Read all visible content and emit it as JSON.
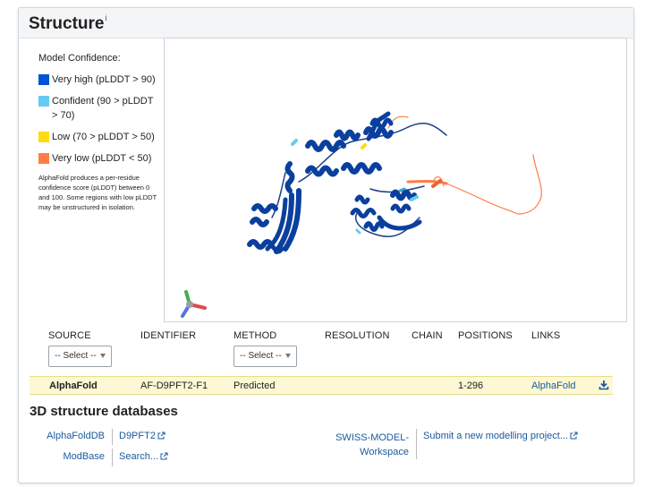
{
  "header": {
    "title": "Structure",
    "info_marker": "i"
  },
  "legend": {
    "title": "Model Confidence:",
    "items": [
      {
        "label": "Very high (pLDDT > 90)",
        "color": "#0053d6"
      },
      {
        "label": "Confident (90 > pLDDT > 70)",
        "color": "#65cbf3"
      },
      {
        "label": "Low (70 > pLDDT > 50)",
        "color": "#ffdb13"
      },
      {
        "label": "Very low (pLDDT < 50)",
        "color": "#ff7d45"
      }
    ],
    "note": "AlphaFold produces a per-residue confidence score (pLDDT) between 0 and 100. Some regions with low pLDDT may be unstructured in isolation."
  },
  "table": {
    "headers": {
      "source": "SOURCE",
      "identifier": "IDENTIFIER",
      "method": "METHOD",
      "resolution": "RESOLUTION",
      "chain": "CHAIN",
      "positions": "POSITIONS",
      "links": "LINKS"
    },
    "source_filter": "-- Select --",
    "method_filter": "-- Select --",
    "rows": [
      {
        "source": "AlphaFold",
        "identifier": "AF-D9PFT2-F1",
        "method": "Predicted",
        "resolution": "",
        "chain": "",
        "positions": "1-296",
        "link": "AlphaFold"
      }
    ]
  },
  "databases": {
    "title": "3D structure databases",
    "entries": [
      {
        "name": "AlphaFoldDB",
        "link": "D9PFT2"
      },
      {
        "name": "ModBase",
        "link": "Search..."
      },
      {
        "name": "SWISS-MODEL-Workspace",
        "name_line1": "SWISS-MODEL-",
        "name_line2": "Workspace",
        "link": "Submit a new modelling project..."
      }
    ]
  },
  "colors": {
    "accent": "#1a5a9c",
    "highlight_row": "#fcf8d4",
    "helix": "#0a3f9e"
  }
}
